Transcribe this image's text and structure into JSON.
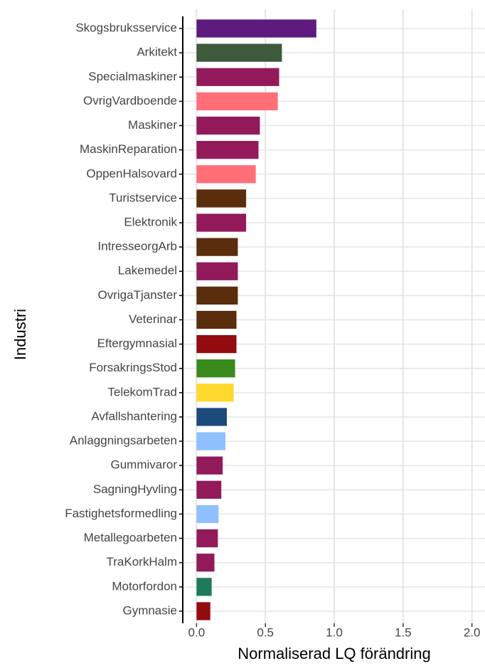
{
  "chart_data": {
    "type": "bar",
    "orientation": "horizontal",
    "xlabel": "Normaliserad LQ förändring",
    "ylabel": "Industri",
    "categories": [
      "Skogsbruksservice",
      "Arkitekt",
      "Specialmaskiner",
      "OvrigVardboende",
      "Maskiner",
      "MaskinReparation",
      "OppenHalsovard",
      "Turistservice",
      "Elektronik",
      "IntresseorgArb",
      "Lakemedel",
      "OvrigaTjanster",
      "Veterinar",
      "Eftergymnasial",
      "ForsakringsStod",
      "TelekomTrad",
      "Avfallshantering",
      "Anlaggningsarbeten",
      "Gummivaror",
      "SagningHyvling",
      "Fastighetsformedling",
      "Metallegoarbeten",
      "TraKorkHalm",
      "Motorfordon",
      "Gymnasie"
    ],
    "values": [
      0.87,
      0.62,
      0.6,
      0.59,
      0.46,
      0.45,
      0.43,
      0.36,
      0.36,
      0.3,
      0.3,
      0.3,
      0.29,
      0.29,
      0.28,
      0.27,
      0.22,
      0.21,
      0.19,
      0.18,
      0.16,
      0.155,
      0.13,
      0.11,
      0.1
    ],
    "colors": [
      "#5e1a7f",
      "#3d5a3a",
      "#931a5a",
      "#ff6f78",
      "#931a5a",
      "#931a5a",
      "#ff6f78",
      "#5a2d0c",
      "#931a5a",
      "#5a2d0c",
      "#931a5a",
      "#5a2d0c",
      "#5a2d0c",
      "#940b12",
      "#3a8a1e",
      "#ffd92e",
      "#1d4a7c",
      "#8fc0ff",
      "#931a5a",
      "#931a5a",
      "#8fc0ff",
      "#931a5a",
      "#931a5a",
      "#1f7a5c",
      "#940b12"
    ],
    "xlim": [
      -0.1,
      2.1
    ],
    "xticks": [
      {
        "value": 0,
        "label": "0.0"
      },
      0.5,
      {
        "value": 1,
        "label": "1.0"
      },
      1.5,
      {
        "value": 2,
        "label": "2.0"
      }
    ],
    "grid": true
  }
}
